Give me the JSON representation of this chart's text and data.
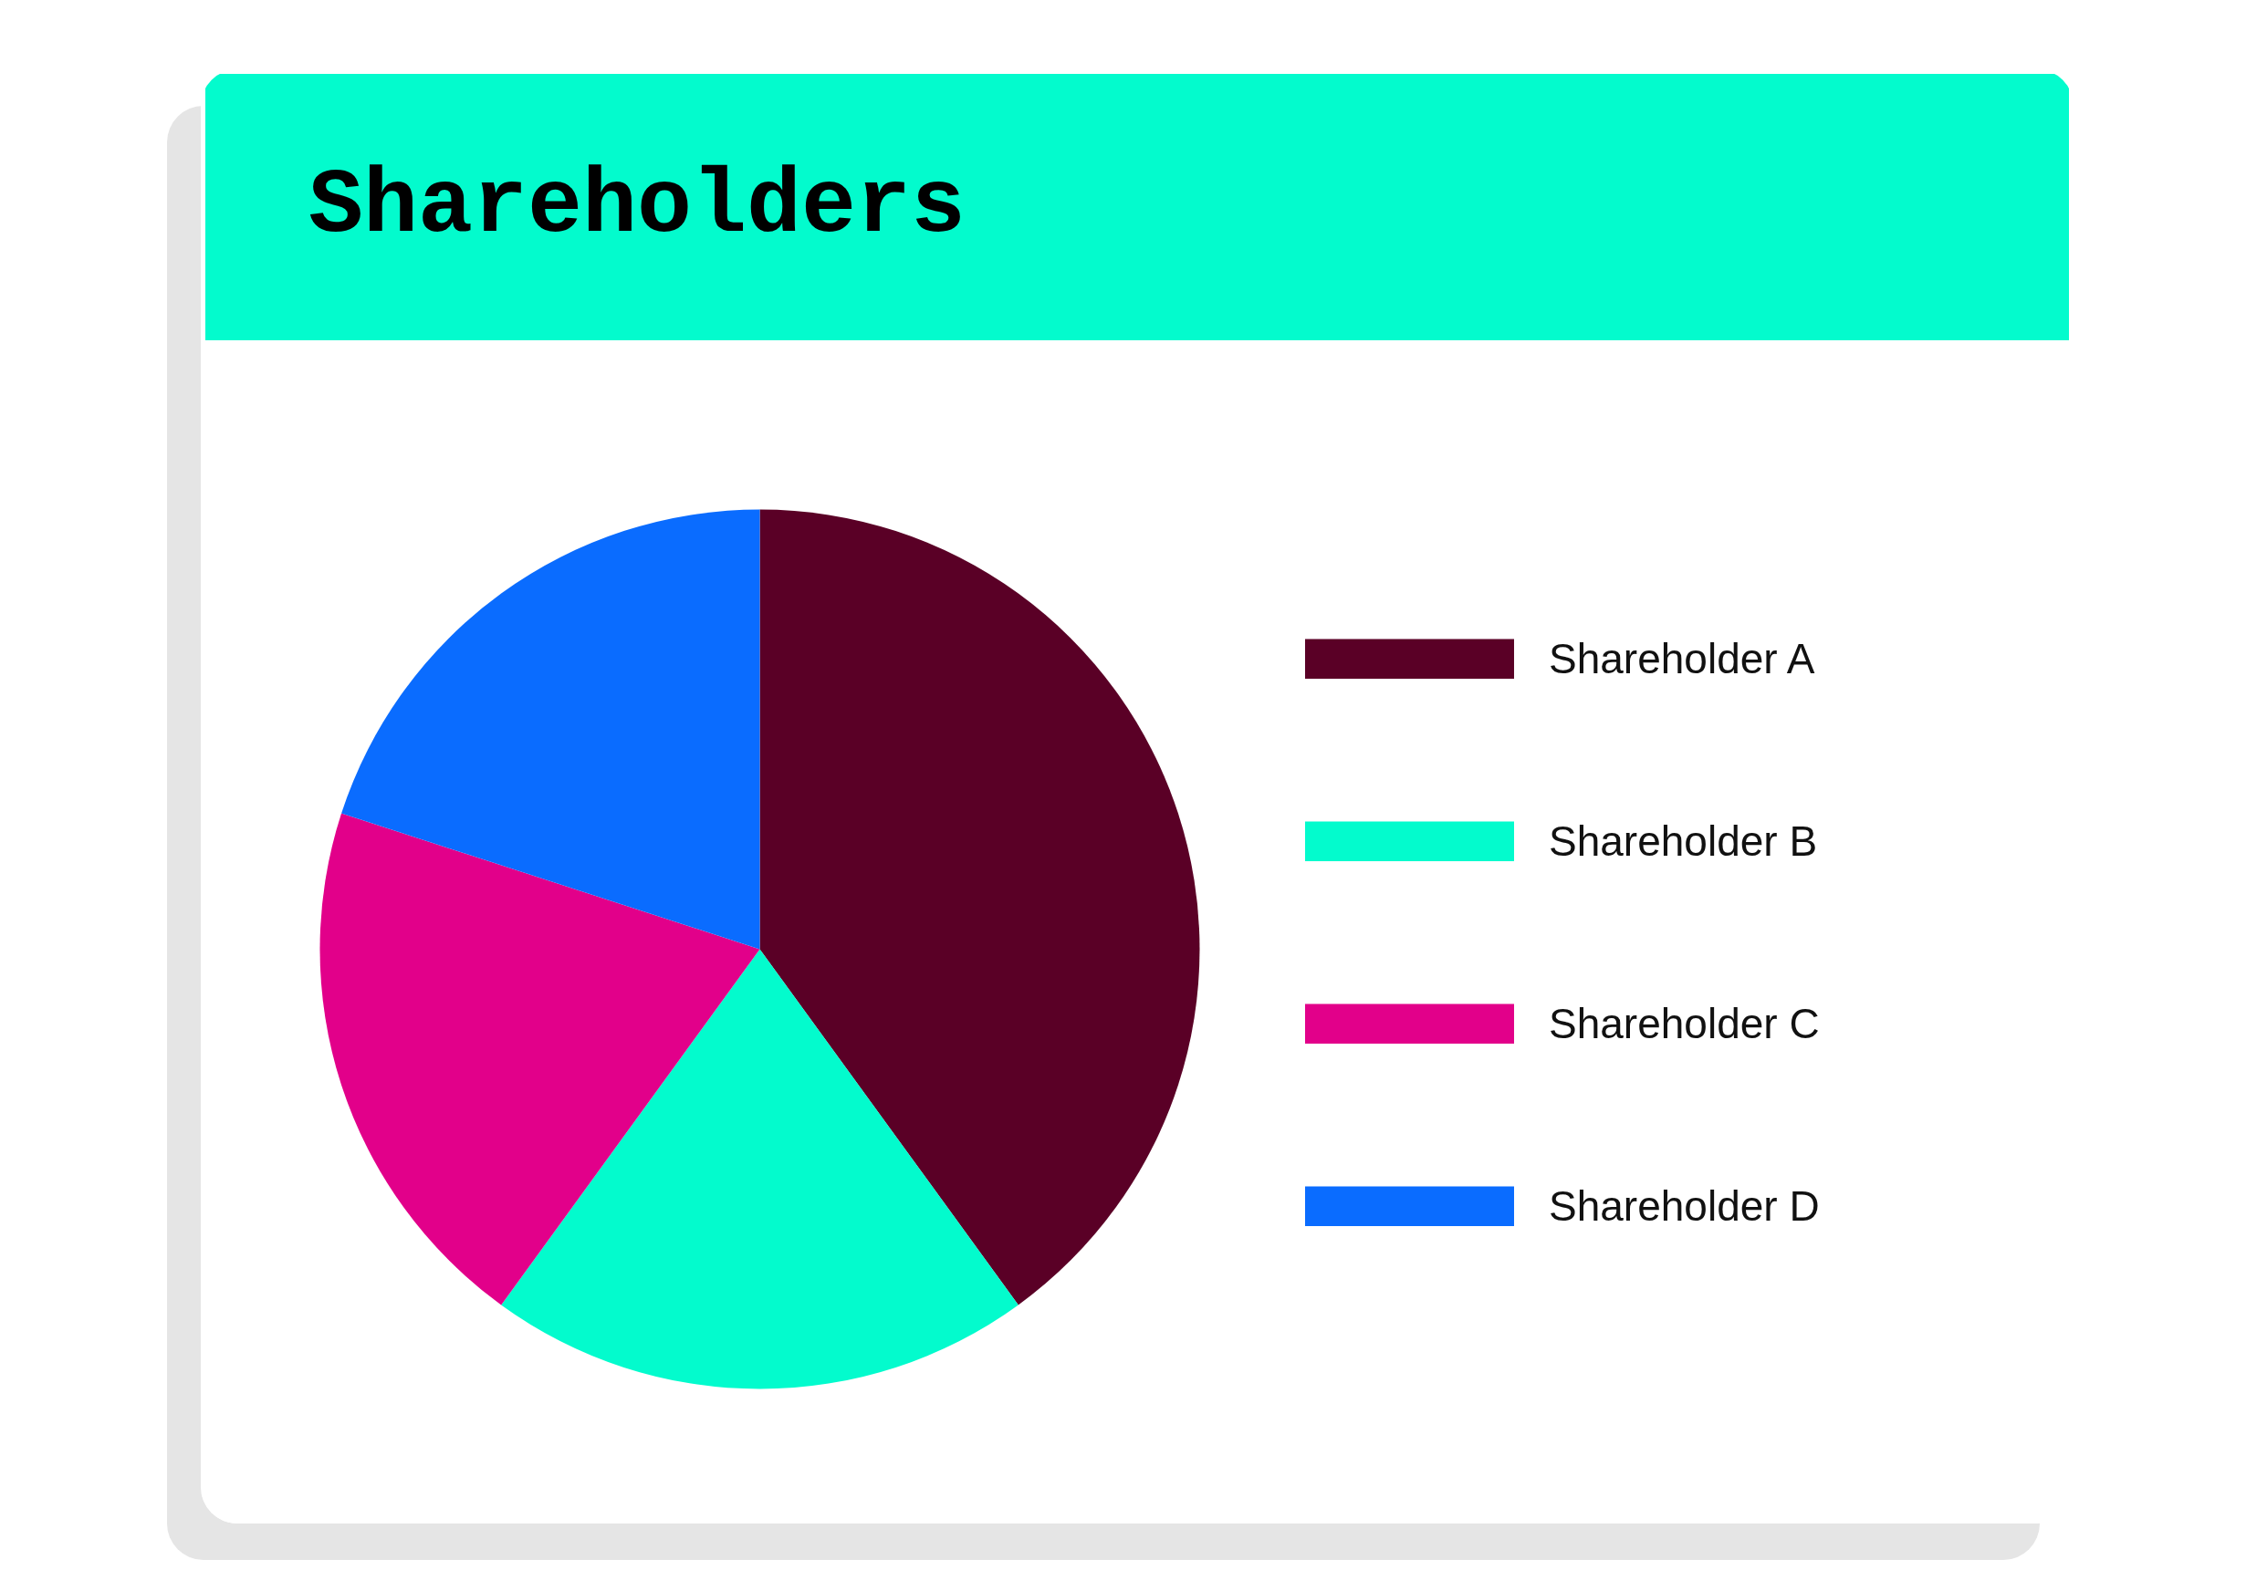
{
  "chart_data": {
    "type": "pie",
    "title": "Shareholders",
    "categories": [
      "Shareholder A",
      "Shareholder B",
      "Shareholder C",
      "Shareholder D"
    ],
    "values": [
      40,
      20,
      20,
      20
    ],
    "colors": [
      "#5a0026",
      "#03fbcd",
      "#e2008a",
      "#0a6cff"
    ],
    "legend": "right"
  }
}
